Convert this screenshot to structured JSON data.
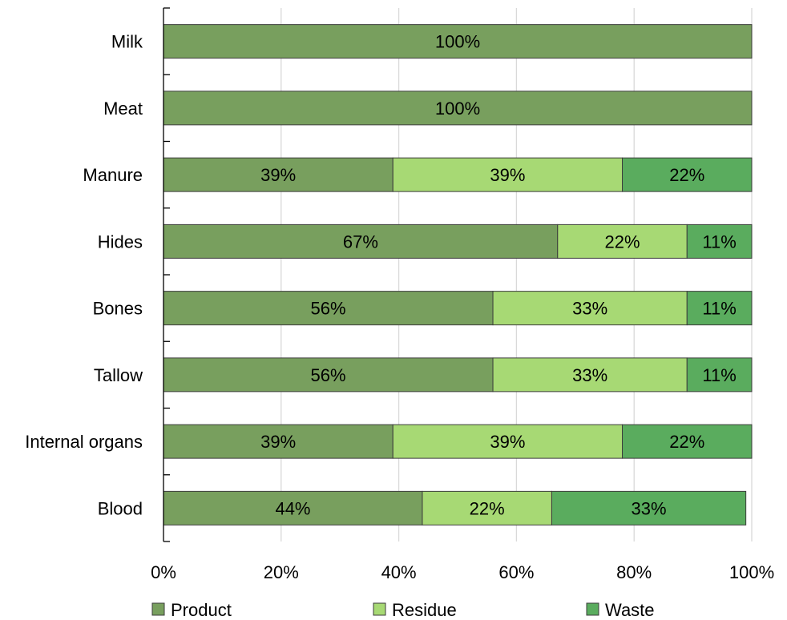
{
  "chart_data": {
    "type": "bar",
    "orientation": "horizontal",
    "stacked": "percent",
    "categories": [
      "Milk",
      "Meat",
      "Manure",
      "Hides",
      "Bones",
      "Tallow",
      "Internal organs",
      "Blood"
    ],
    "series": [
      {
        "name": "Product",
        "color": "#789f5e",
        "values": [
          100,
          100,
          39,
          67,
          56,
          56,
          39,
          44
        ]
      },
      {
        "name": "Residue",
        "color": "#a7d974",
        "values": [
          0,
          0,
          39,
          22,
          33,
          33,
          39,
          22
        ]
      },
      {
        "name": "Waste",
        "color": "#5aac5e",
        "values": [
          0,
          0,
          22,
          11,
          11,
          11,
          22,
          33
        ]
      }
    ],
    "data_labels": [
      [
        "100%",
        "",
        ""
      ],
      [
        "100%",
        "",
        ""
      ],
      [
        "39%",
        "39%",
        "22%"
      ],
      [
        "67%",
        "22%",
        "11%"
      ],
      [
        "56%",
        "33%",
        "11%"
      ],
      [
        "56%",
        "33%",
        "11%"
      ],
      [
        "39%",
        "39%",
        "22%"
      ],
      [
        "44%",
        "22%",
        "33%"
      ]
    ],
    "xlim": [
      0,
      100
    ],
    "x_ticks": [
      "0%",
      "20%",
      "40%",
      "60%",
      "80%",
      "100%"
    ],
    "title": "",
    "xlabel": "",
    "ylabel": "",
    "grid": "vertical",
    "legend_position": "bottom"
  }
}
